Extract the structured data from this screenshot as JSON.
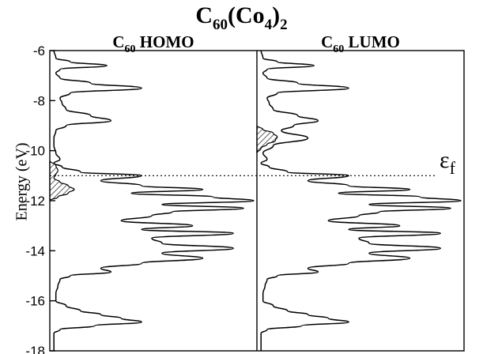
{
  "figure": {
    "title_main": "C",
    "title_sub1": "60",
    "title_mid": "(Co",
    "title_sub2": "4",
    "title_end": ")",
    "title_sub3": "2",
    "panel_left_main": "C",
    "panel_left_sub": "60",
    "panel_left_rest": " HOMO",
    "panel_right_main": "C",
    "panel_right_sub": "60",
    "panel_right_rest": " LUMO",
    "fermi_main": "ε",
    "fermi_sub": "f"
  },
  "chart_data": {
    "type": "line",
    "title": "C60(Co4)2",
    "ylabel": "Energy (eV)",
    "xlabel": "",
    "ylim": [
      -18,
      -6
    ],
    "yticks": [
      "-6",
      "-8",
      "-10",
      "-12",
      "-14",
      "-16",
      "-18"
    ],
    "fermi_level": -11.0,
    "fermi_label": "εf",
    "grid": false,
    "panels": [
      {
        "name": "C60 HOMO",
        "series": [
          {
            "name": "DOS",
            "energy": [
              -6.0,
              -6.3,
              -6.45,
              -6.6,
              -6.75,
              -6.9,
              -7.1,
              -7.3,
              -7.5,
              -7.7,
              -7.9,
              -8.1,
              -8.35,
              -8.6,
              -8.8,
              -9.0,
              -9.2,
              -9.5,
              -9.8,
              -10.1,
              -10.35,
              -10.5,
              -10.65,
              -10.85,
              -11.0,
              -11.2,
              -11.4,
              -11.55,
              -11.7,
              -11.85,
              -12.0,
              -12.15,
              -12.3,
              -12.45,
              -12.6,
              -12.8,
              -13.0,
              -13.15,
              -13.3,
              -13.5,
              -13.7,
              -13.9,
              -14.1,
              -14.3,
              -14.5,
              -14.7,
              -14.85,
              -15.0,
              -15.15,
              -15.4,
              -15.7,
              -16.0,
              -16.2,
              -16.4,
              -16.55,
              -16.7,
              -16.85,
              -17.0,
              -17.15,
              -17.3,
              -18.0
            ],
            "dos": [
              0.02,
              0.03,
              0.1,
              0.28,
              0.05,
              0.03,
              0.05,
              0.2,
              0.45,
              0.1,
              0.05,
              0.06,
              0.08,
              0.2,
              0.3,
              0.08,
              0.03,
              0.02,
              0.02,
              0.03,
              0.05,
              0.02,
              0.06,
              0.15,
              0.45,
              0.25,
              0.45,
              0.75,
              0.4,
              0.8,
              1.0,
              0.55,
              0.95,
              0.6,
              0.5,
              0.35,
              0.7,
              0.45,
              0.9,
              0.5,
              0.55,
              0.9,
              0.55,
              0.75,
              0.45,
              0.25,
              0.3,
              0.1,
              0.05,
              0.04,
              0.03,
              0.03,
              0.08,
              0.15,
              0.25,
              0.35,
              0.45,
              0.22,
              0.05,
              0.02,
              0.02
            ]
          },
          {
            "name": "projected (hatched)",
            "energy": [
              -10.4,
              -10.6,
              -10.8,
              -10.95,
              -11.1,
              -11.25,
              -11.4,
              -11.55,
              -11.7,
              -11.85,
              -12.0
            ],
            "dos": [
              0.0,
              0.03,
              0.04,
              0.03,
              0.02,
              0.05,
              0.09,
              0.12,
              0.09,
              0.04,
              0.0
            ]
          }
        ]
      },
      {
        "name": "C60 LUMO",
        "series": [
          {
            "name": "DOS",
            "energy": [
              -6.0,
              -6.3,
              -6.45,
              -6.6,
              -6.75,
              -6.9,
              -7.1,
              -7.3,
              -7.5,
              -7.7,
              -7.9,
              -8.1,
              -8.35,
              -8.6,
              -8.8,
              -9.0,
              -9.2,
              -9.5,
              -9.8,
              -10.1,
              -10.35,
              -10.5,
              -10.65,
              -10.85,
              -11.0,
              -11.2,
              -11.4,
              -11.55,
              -11.7,
              -11.85,
              -12.0,
              -12.15,
              -12.3,
              -12.45,
              -12.6,
              -12.8,
              -13.0,
              -13.15,
              -13.3,
              -13.5,
              -13.7,
              -13.9,
              -14.1,
              -14.3,
              -14.5,
              -14.7,
              -14.85,
              -15.0,
              -15.15,
              -15.4,
              -15.7,
              -16.0,
              -16.2,
              -16.4,
              -16.55,
              -16.7,
              -16.85,
              -17.0,
              -17.15,
              -17.3,
              -18.0
            ],
            "dos": [
              0.02,
              0.03,
              0.1,
              0.28,
              0.05,
              0.03,
              0.05,
              0.2,
              0.45,
              0.1,
              0.05,
              0.06,
              0.08,
              0.2,
              0.3,
              0.18,
              0.12,
              0.25,
              0.08,
              0.03,
              0.05,
              0.02,
              0.06,
              0.15,
              0.45,
              0.25,
              0.45,
              0.75,
              0.4,
              0.8,
              1.0,
              0.55,
              0.95,
              0.6,
              0.5,
              0.35,
              0.7,
              0.45,
              0.9,
              0.5,
              0.55,
              0.9,
              0.55,
              0.75,
              0.45,
              0.25,
              0.3,
              0.1,
              0.05,
              0.04,
              0.03,
              0.03,
              0.08,
              0.15,
              0.25,
              0.35,
              0.45,
              0.22,
              0.05,
              0.02,
              0.02
            ]
          },
          {
            "name": "projected (hatched)",
            "energy": [
              -9.0,
              -9.15,
              -9.3,
              -9.45,
              -9.6,
              -9.75,
              -9.9,
              -10.1
            ],
            "dos": [
              0.0,
              0.03,
              0.08,
              0.1,
              0.09,
              0.05,
              0.02,
              0.0
            ]
          }
        ]
      }
    ]
  }
}
